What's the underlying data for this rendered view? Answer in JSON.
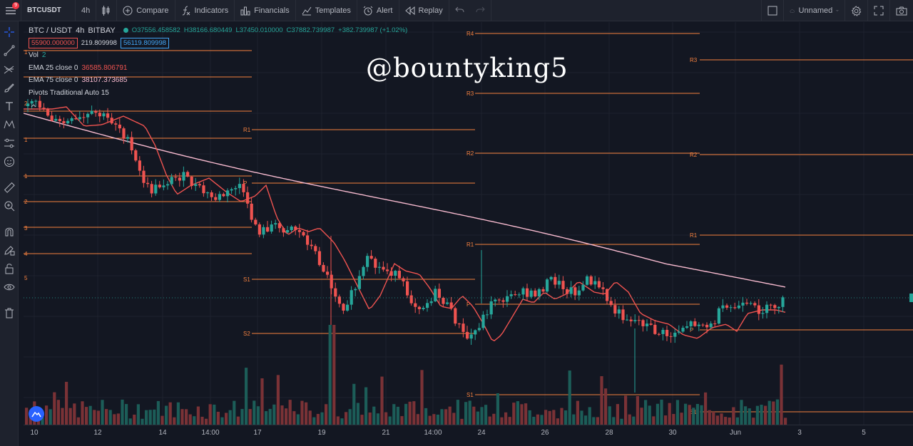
{
  "toolbar": {
    "menu_badge": "9",
    "symbol": "BTCUSDT",
    "interval": "4h",
    "compare": "Compare",
    "indicators": "Indicators",
    "financials": "Financials",
    "templates": "Templates",
    "alert": "Alert",
    "replay": "Replay",
    "layout_name": "Unnamed"
  },
  "legend": {
    "pair": "BTC / USDT",
    "interval": "4h",
    "exchange": "BITBAY",
    "open": "O37556.458582",
    "high": "H38166.680449",
    "low": "L37450.010000",
    "close": "C37882.739987",
    "change": "+382.739987 (+1.02%)",
    "sell_price": "55900.000000",
    "spread": "219.809998",
    "buy_price": "56119.809998",
    "vol_label": "Vol",
    "vol_value": "2",
    "ema25_label": "EMA 25 close 0",
    "ema25_value": "36585.806791",
    "ema75_label": "EMA 75 close 0",
    "ema75_value": "38107.373685",
    "pivots_label": "Pivots Traditional Auto 15"
  },
  "watermark": "@bountyking5",
  "time_axis": [
    "10",
    "12",
    "14",
    "14:00",
    "17",
    "19",
    "21",
    "14:00",
    "24",
    "26",
    "28",
    "30",
    "Jun",
    "3",
    "5"
  ],
  "pivot_labels": {
    "p1": [
      "1",
      "2",
      "1",
      "P",
      "1",
      "2",
      "3",
      "4",
      "5"
    ],
    "p2": [
      "R1",
      "P",
      "S1",
      "S2"
    ],
    "p3": [
      "R4",
      "R3",
      "R2",
      "R1",
      "P",
      "S1"
    ],
    "p4": [
      "R3",
      "R2",
      "R1",
      "P",
      "S1"
    ]
  },
  "colors": {
    "background": "#131722",
    "up": "#26a69a",
    "down": "#ef5350",
    "pivot": "#f5813f",
    "ema25": "#ef5350",
    "ema75": "#f8bbd0"
  },
  "chart_data": {
    "type": "candlestick",
    "x_ticks": [
      "10",
      "12",
      "14",
      "14:00",
      "17",
      "19",
      "21",
      "14:00",
      "24",
      "26",
      "28",
      "30",
      "Jun",
      "3",
      "5"
    ],
    "series": [
      {
        "name": "EMA 25 close 0",
        "last": 36585.806791
      },
      {
        "name": "EMA 75 close 0",
        "last": 38107.373685
      }
    ],
    "last_bar": {
      "open": 37556.458582,
      "high": 38166.680449,
      "low": 37450.01,
      "close": 37882.739987,
      "change": 382.739987,
      "change_pct": 1.02
    }
  }
}
